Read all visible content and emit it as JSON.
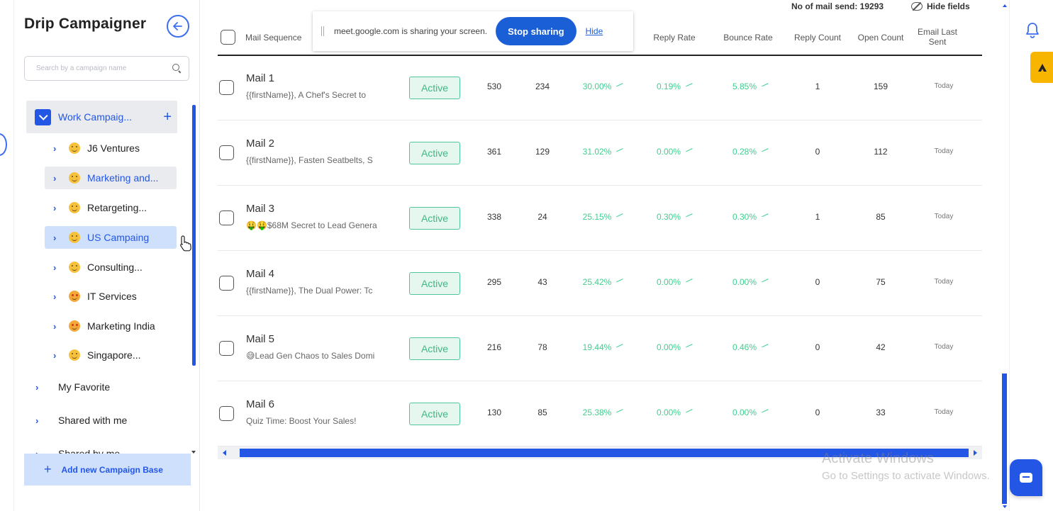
{
  "sidebar": {
    "title": "Drip Campaigner",
    "search_placeholder": "Search by a campaign name",
    "work_group": "Work Campaig...",
    "sub_items": [
      {
        "label": "J6 Ventures"
      },
      {
        "label": "Marketing and..."
      },
      {
        "label": "Retargeting..."
      },
      {
        "label": "US Campaing"
      },
      {
        "label": "Consulting..."
      },
      {
        "label": "IT Services"
      },
      {
        "label": "Marketing India"
      },
      {
        "label": "Singapore..."
      }
    ],
    "roots": [
      {
        "label": "My Favorite"
      },
      {
        "label": "Shared with me"
      },
      {
        "label": "Shared by me"
      }
    ],
    "add_button": "Add new Campaign Base"
  },
  "top": {
    "mail_send": "No of mail send: 19293",
    "hide_fields": "Hide fields"
  },
  "share_bar": {
    "text": "meet.google.com is sharing your screen.",
    "stop_label": "Stop sharing",
    "hide_label": "Hide"
  },
  "table": {
    "headers": {
      "mail_sequence": "Mail Sequence",
      "reply_rate": "Reply Rate",
      "bounce_rate": "Bounce Rate",
      "reply_count": "Reply Count",
      "open_count": "Open Count",
      "email_last_sent_1": "Email Last",
      "email_last_sent_2": "Sent"
    },
    "rows": [
      {
        "title": "Mail 1",
        "subject": "{{firstName}}, A Chef's Secret to",
        "status": "Active",
        "sent": "530",
        "opened": "234",
        "open_rate": "30.00%",
        "reply_rate": "0.19%",
        "bounce_rate": "5.85%",
        "reply_count": "1",
        "open_count": "159",
        "last_sent": "Today"
      },
      {
        "title": "Mail 2",
        "subject": "{{firstName}}, Fasten Seatbelts, S",
        "status": "Active",
        "sent": "361",
        "opened": "129",
        "open_rate": "31.02%",
        "reply_rate": "0.00%",
        "bounce_rate": "0.28%",
        "reply_count": "0",
        "open_count": "112",
        "last_sent": "Today"
      },
      {
        "title": "Mail 3",
        "subject": "🤑🤑$68M Secret to Lead Genera",
        "status": "Active",
        "sent": "338",
        "opened": "24",
        "open_rate": "25.15%",
        "reply_rate": "0.30%",
        "bounce_rate": "0.30%",
        "reply_count": "1",
        "open_count": "85",
        "last_sent": "Today"
      },
      {
        "title": "Mail 4",
        "subject": "{{firstName}}, The Dual Power: Tc",
        "status": "Active",
        "sent": "295",
        "opened": "43",
        "open_rate": "25.42%",
        "reply_rate": "0.00%",
        "bounce_rate": "0.00%",
        "reply_count": "0",
        "open_count": "75",
        "last_sent": "Today"
      },
      {
        "title": "Mail 5",
        "subject": "😅Lead Gen Chaos to Sales Domi",
        "status": "Active",
        "sent": "216",
        "opened": "78",
        "open_rate": "19.44%",
        "reply_rate": "0.00%",
        "bounce_rate": "0.46%",
        "reply_count": "0",
        "open_count": "42",
        "last_sent": "Today"
      },
      {
        "title": "Mail 6",
        "subject": "Quiz Time: Boost Your Sales!",
        "status": "Active",
        "sent": "130",
        "opened": "85",
        "open_rate": "25.38%",
        "reply_rate": "0.00%",
        "bounce_rate": "0.00%",
        "reply_count": "0",
        "open_count": "33",
        "last_sent": "Today"
      }
    ]
  },
  "watermark": {
    "line1": "Activate Windows",
    "line2": "Go to Settings to activate Windows."
  }
}
